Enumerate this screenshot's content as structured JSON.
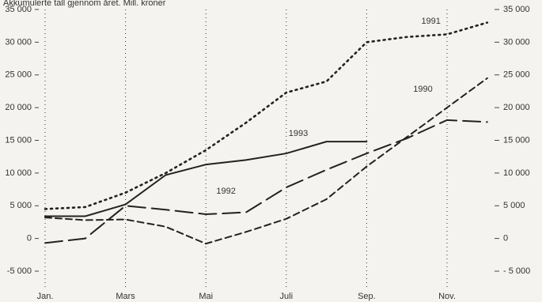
{
  "chart_data": {
    "type": "line",
    "title": "Akkumulerte tall gjennom året. Mill. kroner",
    "categories": [
      "Jan.",
      null,
      "Mars",
      null,
      "Mai",
      null,
      "Juli",
      null,
      "Sep.",
      null,
      "Nov.",
      null
    ],
    "series": [
      {
        "name": "1990",
        "color": "#222222",
        "dash": "short",
        "values": [
          3200,
          2800,
          2900,
          1800,
          -800,
          1000,
          3000,
          6000,
          11000,
          15500,
          20000,
          24500
        ]
      },
      {
        "name": "1991",
        "color": "#222222",
        "dash": "dotted",
        "values": [
          4500,
          4800,
          7000,
          10000,
          13500,
          17700,
          22300,
          24000,
          30000,
          30800,
          31200,
          33000
        ]
      },
      {
        "name": "1992",
        "color": "#222222",
        "dash": "long",
        "values": [
          -700,
          0,
          5000,
          4400,
          3700,
          4000,
          7800,
          10500,
          13000,
          15300,
          18100,
          17800
        ]
      },
      {
        "name": "1993",
        "color": "#222222",
        "dash": "solid",
        "values": [
          3400,
          3400,
          5200,
          9700,
          11300,
          12000,
          13000,
          14800,
          14800,
          null,
          null,
          null
        ]
      }
    ],
    "ylim": [
      -5000,
      35000
    ],
    "yticks": [
      {
        "value": -5000,
        "label": "-5 000"
      },
      0,
      {
        "value": 5000,
        "label": "5 000"
      },
      {
        "value": 10000,
        "label": "10 000"
      },
      {
        "value": 15000,
        "label": "15 000"
      },
      {
        "value": 20000,
        "label": "20 000"
      },
      {
        "value": 25000,
        "label": "25 000"
      },
      {
        "value": 30000,
        "label": "30 000"
      },
      {
        "value": 35000,
        "label": "35 000"
      }
    ],
    "y2lim": [
      -5000,
      35000
    ],
    "y2ticks": [
      {
        "value": -5000,
        "label": "- 5 000"
      },
      0,
      {
        "value": 5000,
        "label": "5 000"
      },
      {
        "value": 10000,
        "label": "10 000"
      },
      {
        "value": 15000,
        "label": "15 000"
      },
      {
        "value": 20000,
        "label": "20 000"
      },
      {
        "value": 25000,
        "label": "25 000"
      },
      {
        "value": 30000,
        "label": "30 000"
      },
      {
        "value": 35000,
        "label": "35 000"
      }
    ],
    "x_grid": true
  }
}
